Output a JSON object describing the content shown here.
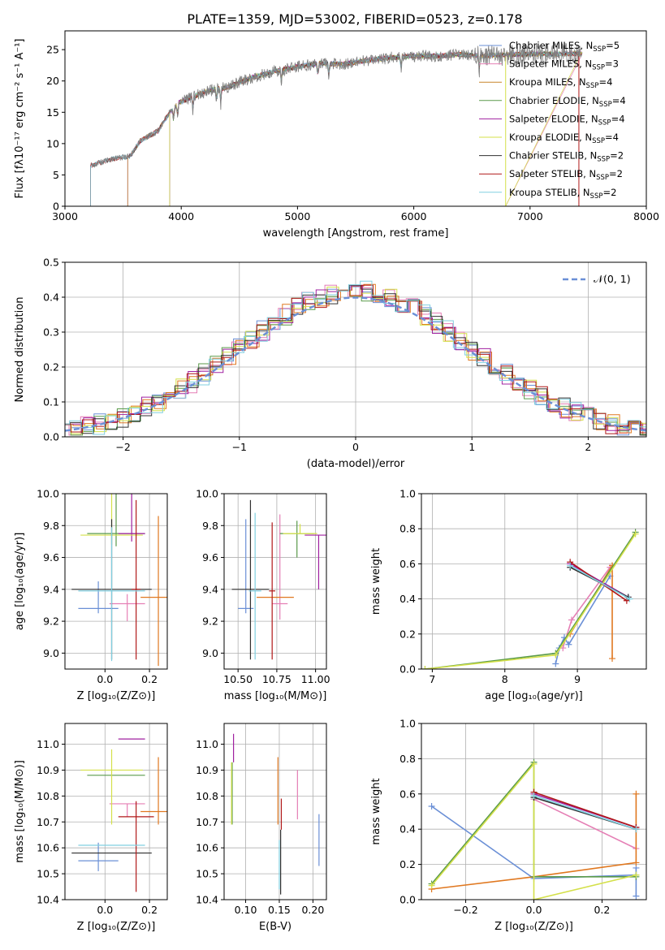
{
  "figure_title": "PLATE=1359, MJD=53002, FIBERID=0523, z=0.178",
  "chart_data": [
    {
      "id": "spectrum",
      "type": "line",
      "title": "PLATE=1359, MJD=53002, FIBERID=0523, z=0.178",
      "xlabel": "wavelength [Angstrom, rest frame]",
      "ylabel": "Flux [fλ10⁻¹⁷ erg cm⁻² s⁻¹ A⁻¹]",
      "xlim": [
        3000,
        8000
      ],
      "ylim": [
        0,
        28
      ],
      "xticks": [
        3000,
        4000,
        5000,
        6000,
        7000,
        8000
      ],
      "yticks": [
        0,
        5,
        10,
        15,
        20,
        25
      ],
      "grid": false,
      "legend_position": "upper-right",
      "observed_color": "#808080",
      "spectrum_envelope": {
        "x": [
          3220,
          3400,
          3560,
          3650,
          3800,
          3900,
          3980,
          4100,
          4250,
          4400,
          4600,
          4800,
          5000,
          5200,
          5400,
          5600,
          5800,
          6000,
          6200,
          6400,
          6600,
          6800,
          7000,
          7200,
          7450
        ],
        "y": [
          6.5,
          7.5,
          8.0,
          10.5,
          12.0,
          15.0,
          16.5,
          17.5,
          18.5,
          19.0,
          20.5,
          21.5,
          22.3,
          22.8,
          22.7,
          23.3,
          23.7,
          24.0,
          24.0,
          24.2,
          24.0,
          24.2,
          24.3,
          24.3,
          24.4
        ]
      },
      "series": [
        {
          "name": "Chabrier MILES, N_SSP=5",
          "label_main": "Chabrier MILES, N",
          "label_sub": "SSP",
          "label_tail": "=5",
          "color": "#6a8fd6",
          "start": 3540
        },
        {
          "name": "Salpeter MILES, N_SSP=3",
          "label_main": "Salpeter MILES, N",
          "label_sub": "SSP",
          "label_tail": "=3",
          "color": "#e57fb5",
          "start": 3540
        },
        {
          "name": "Kroupa MILES, N_SSP=4",
          "label_main": "Kroupa MILES, N",
          "label_sub": "SSP",
          "label_tail": "=4",
          "color": "#c8862b",
          "start": 3540
        },
        {
          "name": "Chabrier ELODIE, N_SSP=4",
          "label_main": "Chabrier ELODIE, N",
          "label_sub": "SSP",
          "label_tail": "=4",
          "color": "#5a9a4a",
          "start": 3900
        },
        {
          "name": "Salpeter ELODIE, N_SSP=4",
          "label_main": "Salpeter ELODIE, N",
          "label_sub": "SSP",
          "label_tail": "=4",
          "color": "#a020a0",
          "start": 3900
        },
        {
          "name": "Kroupa ELODIE, N_SSP=4",
          "label_main": "Kroupa ELODIE, N",
          "label_sub": "SSP",
          "label_tail": "=4",
          "color": "#d4e04a",
          "start": 3900
        },
        {
          "name": "Chabrier STELIB, N_SSP=2",
          "label_main": "Chabrier STELIB, N",
          "label_sub": "SSP",
          "label_tail": "=2",
          "color": "#303030",
          "start": 3220
        },
        {
          "name": "Salpeter STELIB, N_SSP=2",
          "label_main": "Salpeter STELIB, N",
          "label_sub": "SSP",
          "label_tail": "=2",
          "color": "#b01818",
          "start": 3220
        },
        {
          "name": "Kroupa STELIB, N_SSP=2",
          "label_main": "Kroupa STELIB, N",
          "label_sub": "SSP",
          "label_tail": "=2",
          "color": "#80cfe0",
          "start": 3220
        }
      ]
    },
    {
      "id": "residuals",
      "type": "histogram",
      "xlabel": "(data-model)/error",
      "ylabel": "Normed distribution",
      "xlim": [
        -2.5,
        2.5
      ],
      "ylim": [
        0,
        0.5
      ],
      "xticks": [
        -2,
        -1,
        0,
        1,
        2
      ],
      "xtick_labels": [
        "−2",
        "−1",
        "0",
        "1",
        "2"
      ],
      "yticks": [
        0,
        0.1,
        0.2,
        0.3,
        0.4,
        0.5
      ],
      "ytick_labels": [
        "0.0",
        "0.1",
        "0.2",
        "0.3",
        "0.4",
        "0.5"
      ],
      "grid": true,
      "legend_label": "𝒩(0, 1)",
      "legend_position": "upper-right",
      "gaussian_color": "#6a8fd6",
      "bin_width": 0.1,
      "colors": [
        "#6a8fd6",
        "#e57fb5",
        "#e07820",
        "#5a9a4a",
        "#a020a0",
        "#d4e04a",
        "#303030",
        "#b01818",
        "#80cfe0"
      ],
      "offsets": [
        0.0,
        -0.03,
        0.04,
        0.0,
        0.02,
        0.01,
        -0.01,
        0.0,
        -0.02
      ],
      "noise_seed": 1359
    },
    {
      "id": "age-vs-Z",
      "type": "errorbar",
      "xlabel": "Z [log₁₀(Z/Z⊙)]",
      "ylabel": "age  [log₁₀(age/yr)]",
      "xlim": [
        -0.18,
        0.28
      ],
      "ylim": [
        8.9,
        10.0
      ],
      "xticks": [
        0.0,
        0.2
      ],
      "xtick_labels": [
        "0.0",
        "0.2"
      ],
      "yticks": [
        9.0,
        9.2,
        9.4,
        9.6,
        9.8,
        10.0
      ],
      "ytick_labels": [
        "9.0",
        "9.2",
        "9.4",
        "9.6",
        "9.8",
        "10.0"
      ],
      "grid": true,
      "points": [
        {
          "x": -0.03,
          "y": 9.28,
          "xerr": 0.09,
          "yerr": [
            0.03,
            0.17
          ],
          "color": "#6a8fd6"
        },
        {
          "x": 0.1,
          "y": 9.31,
          "xerr": 0.08,
          "yerr": [
            0.11,
            0.06
          ],
          "color": "#e57fb5"
        },
        {
          "x": 0.24,
          "y": 9.35,
          "xerr": 0.08,
          "yerr": [
            0.43,
            0.51
          ],
          "color": "#e07820"
        },
        {
          "x": 0.05,
          "y": 9.75,
          "xerr": 0.13,
          "yerr": [
            0.08,
            0.41
          ],
          "color": "#5a9a4a"
        },
        {
          "x": 0.12,
          "y": 9.75,
          "xerr": 0.06,
          "yerr": [
            0.05,
            0.55
          ],
          "color": "#a020a0"
        },
        {
          "x": 0.03,
          "y": 9.74,
          "xerr": 0.14,
          "yerr": [
            0.06,
            0.74
          ],
          "color": "#d4e04a"
        },
        {
          "x": 0.03,
          "y": 9.4,
          "xerr": 0.18,
          "yerr": [
            0.44,
            0.44
          ],
          "color": "#303030"
        },
        {
          "x": 0.14,
          "y": 9.4,
          "xerr": 0.02,
          "yerr": [
            0.44,
            0.56
          ],
          "color": "#b01818"
        },
        {
          "x": 0.03,
          "y": 9.39,
          "xerr": 0.15,
          "yerr": [
            0.44,
            0.4
          ],
          "color": "#80cfe0"
        }
      ]
    },
    {
      "id": "age-vs-mass",
      "type": "errorbar",
      "xlabel": "mass [log₁₀(M/M⊙)]",
      "ylabel": "",
      "xlim": [
        10.41,
        11.07
      ],
      "ylim": [
        8.9,
        10.0
      ],
      "xticks": [
        10.5,
        10.75,
        11.0
      ],
      "xtick_labels": [
        "10.50",
        "10.75",
        "11.00"
      ],
      "yticks": [
        9.0,
        9.2,
        9.4,
        9.6,
        9.8,
        10.0
      ],
      "ytick_labels": [
        "9.0",
        "9.2",
        "9.4",
        "9.6",
        "9.8",
        "10.0"
      ],
      "grid": true,
      "points": [
        {
          "x": 10.55,
          "y": 9.28,
          "xerr": 0.05,
          "yerr": [
            0.03,
            0.56
          ],
          "color": "#6a8fd6"
        },
        {
          "x": 10.77,
          "y": 9.31,
          "xerr": 0.05,
          "yerr": [
            0.1,
            0.56
          ],
          "color": "#e57fb5"
        },
        {
          "x": 10.74,
          "y": 9.35,
          "xerr": 0.12,
          "yerr": [
            0.0,
            0.0
          ],
          "color": "#e07820"
        },
        {
          "x": 10.88,
          "y": 9.75,
          "xerr": 0.11,
          "yerr": [
            0.15,
            0.08
          ],
          "color": "#5a9a4a"
        },
        {
          "x": 11.02,
          "y": 9.74,
          "xerr": 0.09,
          "yerr": [
            0.34,
            0.0
          ],
          "color": "#a020a0"
        },
        {
          "x": 10.9,
          "y": 9.75,
          "xerr": 0.11,
          "yerr": [
            0.0,
            0.06
          ],
          "color": "#d4e04a"
        },
        {
          "x": 10.58,
          "y": 9.4,
          "xerr": 0.12,
          "yerr": [
            0.44,
            0.56
          ],
          "color": "#303030"
        },
        {
          "x": 10.72,
          "y": 9.39,
          "xerr": 0.02,
          "yerr": [
            0.43,
            0.43
          ],
          "color": "#b01818"
        },
        {
          "x": 10.61,
          "y": 9.39,
          "xerr": 0.04,
          "yerr": [
            0.43,
            0.49
          ],
          "color": "#80cfe0"
        }
      ]
    },
    {
      "id": "massweight-vs-age",
      "type": "line",
      "xlabel": "age  [log₁₀(age/yr)]",
      "ylabel": "mass weight",
      "xlim": [
        6.85,
        9.95
      ],
      "ylim": [
        0,
        1.0
      ],
      "xticks": [
        7,
        8,
        9
      ],
      "xtick_labels": [
        "7",
        "8",
        "9"
      ],
      "yticks": [
        0,
        0.2,
        0.4,
        0.6,
        0.8,
        1.0
      ],
      "ytick_labels": [
        "0.0",
        "0.2",
        "0.4",
        "0.6",
        "0.8",
        "1.0"
      ],
      "grid": true,
      "series": [
        {
          "color": "#6a8fd6",
          "x": [
            8.7,
            8.75,
            8.82,
            8.88,
            9.45
          ],
          "y": [
            0.03,
            0.12,
            0.18,
            0.14,
            0.53
          ]
        },
        {
          "color": "#e57fb5",
          "x": [
            8.8,
            8.92,
            9.45
          ],
          "y": [
            0.12,
            0.28,
            0.58
          ]
        },
        {
          "color": "#e07820",
          "x": [
            8.9,
            9.48,
            9.48
          ],
          "y": [
            0.2,
            0.59,
            0.06
          ]
        },
        {
          "color": "#5a9a4a",
          "x": [
            6.9,
            8.7,
            9.8
          ],
          "y": [
            0.0,
            0.09,
            0.78
          ]
        },
        {
          "color": "#a020a0",
          "x": [
            8.9,
            9.7
          ],
          "y": [
            0.6,
            0.41
          ]
        },
        {
          "color": "#d4e04a",
          "x": [
            6.9,
            8.7,
            9.8
          ],
          "y": [
            0.0,
            0.08,
            0.77
          ]
        },
        {
          "color": "#303030",
          "x": [
            8.9,
            9.7
          ],
          "y": [
            0.58,
            0.41
          ]
        },
        {
          "color": "#b01818",
          "x": [
            8.9,
            9.68
          ],
          "y": [
            0.61,
            0.39
          ]
        },
        {
          "color": "#80cfe0",
          "x": [
            8.9,
            9.72
          ],
          "y": [
            0.59,
            0.4
          ]
        }
      ]
    },
    {
      "id": "mass-vs-Z",
      "type": "errorbar",
      "xlabel": "Z [log₁₀(Z/Z⊙)]",
      "ylabel": "mass [log₁₀(M/M⊙)]",
      "xlim": [
        -0.18,
        0.28
      ],
      "ylim": [
        10.4,
        11.08
      ],
      "xticks": [
        0.0,
        0.2
      ],
      "xtick_labels": [
        "0.0",
        "0.2"
      ],
      "yticks": [
        10.4,
        10.5,
        10.6,
        10.7,
        10.8,
        10.9,
        11.0
      ],
      "ytick_labels": [
        "10.4",
        "10.5",
        "10.6",
        "10.7",
        "10.8",
        "10.9",
        "11.0"
      ],
      "grid": true,
      "points": [
        {
          "x": -0.03,
          "y": 10.55,
          "xerr": 0.09,
          "yerr": [
            0.04,
            0.07
          ],
          "color": "#6a8fd6"
        },
        {
          "x": 0.1,
          "y": 10.77,
          "xerr": 0.08,
          "yerr": [
            0.05,
            0.0
          ],
          "color": "#e57fb5"
        },
        {
          "x": 0.24,
          "y": 10.74,
          "xerr": 0.08,
          "yerr": [
            0.05,
            0.21
          ],
          "color": "#e07820"
        },
        {
          "x": 0.05,
          "y": 10.88,
          "xerr": 0.13,
          "yerr": [
            0.0,
            0.0
          ],
          "color": "#5a9a4a"
        },
        {
          "x": 0.12,
          "y": 11.02,
          "xerr": 0.06,
          "yerr": [
            0.0,
            0.0
          ],
          "color": "#a020a0"
        },
        {
          "x": 0.03,
          "y": 10.9,
          "xerr": 0.14,
          "yerr": [
            0.21,
            0.08
          ],
          "color": "#d4e04a"
        },
        {
          "x": 0.03,
          "y": 10.58,
          "xerr": 0.18,
          "yerr": [
            0.0,
            0.0
          ],
          "color": "#303030"
        },
        {
          "x": 0.14,
          "y": 10.72,
          "xerr": 0.08,
          "yerr": [
            0.29,
            0.06
          ],
          "color": "#b01818"
        },
        {
          "x": 0.03,
          "y": 10.61,
          "xerr": 0.15,
          "yerr": [
            0.0,
            0.0
          ],
          "color": "#80cfe0"
        }
      ]
    },
    {
      "id": "mass-vs-ebv",
      "type": "errorbar",
      "xlabel": "E(B-V)",
      "ylabel": "",
      "xlim": [
        0.068,
        0.22
      ],
      "ylim": [
        10.4,
        11.08
      ],
      "xticks": [
        0.1,
        0.15,
        0.2
      ],
      "xtick_labels": [
        "0.10",
        "0.15",
        "0.20"
      ],
      "yticks": [
        10.4,
        10.5,
        10.6,
        10.7,
        10.8,
        10.9,
        11.0
      ],
      "ytick_labels": [
        "10.4",
        "10.5",
        "10.6",
        "10.7",
        "10.8",
        "10.9",
        "11.0"
      ],
      "grid": true,
      "points": [
        {
          "x": 0.209,
          "y": 10.61,
          "xerr": 0,
          "yerr": [
            0.08,
            0.12
          ],
          "color": "#6a8fd6"
        },
        {
          "x": 0.177,
          "y": 10.83,
          "xerr": 0,
          "yerr": [
            0.12,
            0.07
          ],
          "color": "#e57fb5"
        },
        {
          "x": 0.148,
          "y": 10.82,
          "xerr": 0,
          "yerr": [
            0.13,
            0.13
          ],
          "color": "#e07820"
        },
        {
          "x": 0.08,
          "y": 10.82,
          "xerr": 0,
          "yerr": [
            0.13,
            0.11
          ],
          "color": "#5a9a4a"
        },
        {
          "x": 0.082,
          "y": 10.96,
          "xerr": 0,
          "yerr": [
            0.03,
            0.08
          ],
          "color": "#a020a0"
        },
        {
          "x": 0.079,
          "y": 10.82,
          "xerr": 0,
          "yerr": [
            0.13,
            0.11
          ],
          "color": "#d4e04a"
        },
        {
          "x": 0.152,
          "y": 10.55,
          "xerr": 0,
          "yerr": [
            0.13,
            0.12
          ],
          "color": "#303030"
        },
        {
          "x": 0.153,
          "y": 10.72,
          "xerr": 0,
          "yerr": [
            0.05,
            0.07
          ],
          "color": "#b01818"
        },
        {
          "x": 0.15,
          "y": 10.54,
          "xerr": 0,
          "yerr": [
            0.1,
            0.09
          ],
          "color": "#80cfe0"
        }
      ]
    },
    {
      "id": "massweight-vs-Z",
      "type": "line",
      "xlabel": "Z [log₁₀(Z/Z⊙)]",
      "ylabel": "mass weight",
      "xlim": [
        -0.33,
        0.33
      ],
      "ylim": [
        0,
        1.0
      ],
      "xticks": [
        -0.2,
        0.0,
        0.2
      ],
      "xtick_labels": [
        "−0.2",
        "0.0",
        "0.2"
      ],
      "yticks": [
        0,
        0.2,
        0.4,
        0.6,
        0.8,
        1.0
      ],
      "ytick_labels": [
        "0.0",
        "0.2",
        "0.4",
        "0.6",
        "0.8",
        "1.0"
      ],
      "grid": true,
      "series": [
        {
          "color": "#6a8fd6",
          "x": [
            -0.3,
            0.0,
            0.3,
            0.3,
            0.3
          ],
          "y": [
            0.53,
            0.12,
            0.14,
            0.02,
            0.18
          ]
        },
        {
          "color": "#e57fb5",
          "x": [
            0.0,
            0.3
          ],
          "y": [
            0.57,
            0.29
          ]
        },
        {
          "color": "#e07820",
          "x": [
            -0.3,
            0.0,
            0.3,
            0.3
          ],
          "y": [
            0.06,
            0.13,
            0.21,
            0.6
          ]
        },
        {
          "color": "#5a9a4a",
          "x": [
            -0.3,
            0.0,
            0.0,
            0.3
          ],
          "y": [
            0.09,
            0.78,
            0.13,
            0.13
          ]
        },
        {
          "color": "#a020a0",
          "x": [
            0.0,
            0.3
          ],
          "y": [
            0.6,
            0.41
          ]
        },
        {
          "color": "#d4e04a",
          "x": [
            -0.3,
            0.0,
            0.0,
            0.3
          ],
          "y": [
            0.08,
            0.77,
            0.0,
            0.14
          ]
        },
        {
          "color": "#303030",
          "x": [
            0.0,
            0.3
          ],
          "y": [
            0.58,
            0.4
          ]
        },
        {
          "color": "#b01818",
          "x": [
            0.0,
            0.3
          ],
          "y": [
            0.61,
            0.41
          ]
        },
        {
          "color": "#80cfe0",
          "x": [
            0.0,
            0.3
          ],
          "y": [
            0.59,
            0.4
          ]
        }
      ]
    }
  ]
}
